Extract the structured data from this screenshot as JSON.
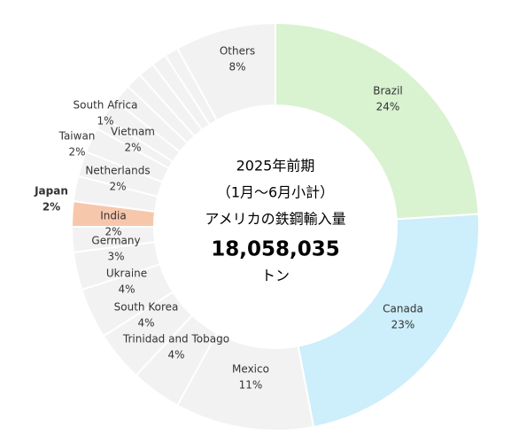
{
  "chart_data": {
    "type": "donut",
    "center_text": [
      "2025年前期",
      "（1月～6月小計）",
      "アメリカの鉄鋼輸入量",
      "18,058,035",
      "トン"
    ],
    "categories": [
      "Brazil",
      "Canada",
      "Mexico",
      "Trinidad and Tobago",
      "South Korea",
      "Ukraine",
      "Germany",
      "India",
      "Japan",
      "Netherlands",
      "Taiwan",
      "Vietnam",
      "South Africa",
      null,
      null,
      null,
      null,
      null,
      null,
      "Others"
    ],
    "values": [
      24,
      23,
      11,
      4,
      4,
      4,
      3,
      2,
      2,
      2,
      2,
      2,
      1,
      1.6,
      1.5,
      1.3,
      1.3,
      1.2,
      1.1,
      8
    ],
    "value_labels": [
      "24%",
      "23%",
      "11%",
      "4%",
      "4%",
      "4%",
      "3%",
      "2%",
      "2%",
      "2%",
      "2%",
      "2%",
      "1%",
      null,
      null,
      null,
      null,
      null,
      null,
      "8%"
    ],
    "colors": [
      "#d9f2d0",
      "#cdeefb",
      "#f2f2f2",
      "#f2f2f2",
      "#f2f2f2",
      "#f2f2f2",
      "#f2f2f2",
      "#f2f2f2",
      "#f7c7ac",
      "#f2f2f2",
      "#f2f2f2",
      "#f2f2f2",
      "#f2f2f2",
      "#f2f2f2",
      "#f2f2f2",
      "#f2f2f2",
      "#f2f2f2",
      "#f2f2f2",
      "#f2f2f2",
      "#f2f2f2"
    ],
    "highlight": "Japan"
  }
}
